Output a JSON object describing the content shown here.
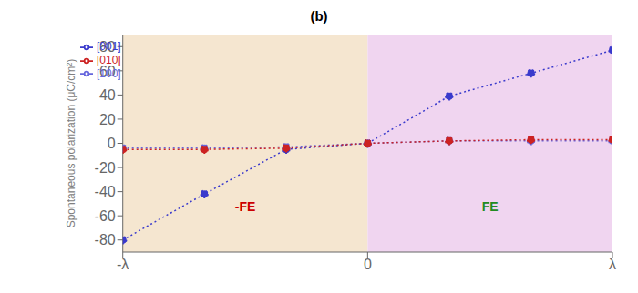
{
  "chart_data": {
    "type": "line",
    "title": "(b)",
    "ylabel": "Spontaneous polarization (μC/cm²)",
    "x": [
      -1.0,
      -0.667,
      -0.333,
      0.0,
      0.333,
      0.667,
      1.0
    ],
    "xlim": [
      -1.0,
      1.0
    ],
    "xticks": [
      {
        "value": -1.0,
        "label": "-λ"
      },
      0,
      {
        "value": 1.0,
        "label": "λ"
      }
    ],
    "ylim": [
      -90,
      90
    ],
    "yticks": [
      -80,
      -60,
      -40,
      -20,
      0,
      20,
      40,
      60,
      80
    ],
    "grid": false,
    "legend": "upper left",
    "marker": "o",
    "line_style": "dotted",
    "series": [
      {
        "name": "[001]",
        "color": "#3a3acc",
        "values": [
          -80,
          -42,
          -5,
          0,
          39,
          58,
          77
        ]
      },
      {
        "name": "[100]",
        "color": "#6666dd",
        "values": [
          -4,
          -4,
          -3,
          0,
          2,
          2,
          2
        ]
      },
      {
        "name": "[010]",
        "color": "#cc2222",
        "values": [
          -5,
          -5,
          -4,
          0,
          2,
          3,
          3
        ]
      }
    ],
    "spans": [
      {
        "from": -1.0,
        "to": 0.0,
        "color": "#f5e6d0"
      },
      {
        "from": 0.0,
        "to": 1.0,
        "color": "#f0d5f0"
      }
    ],
    "annotations": [
      {
        "text": "-FE",
        "x": -0.5,
        "y": -52,
        "color": "#cc0000"
      },
      {
        "text": "FE",
        "x": 0.5,
        "y": -52,
        "color": "#228B22"
      }
    ]
  }
}
